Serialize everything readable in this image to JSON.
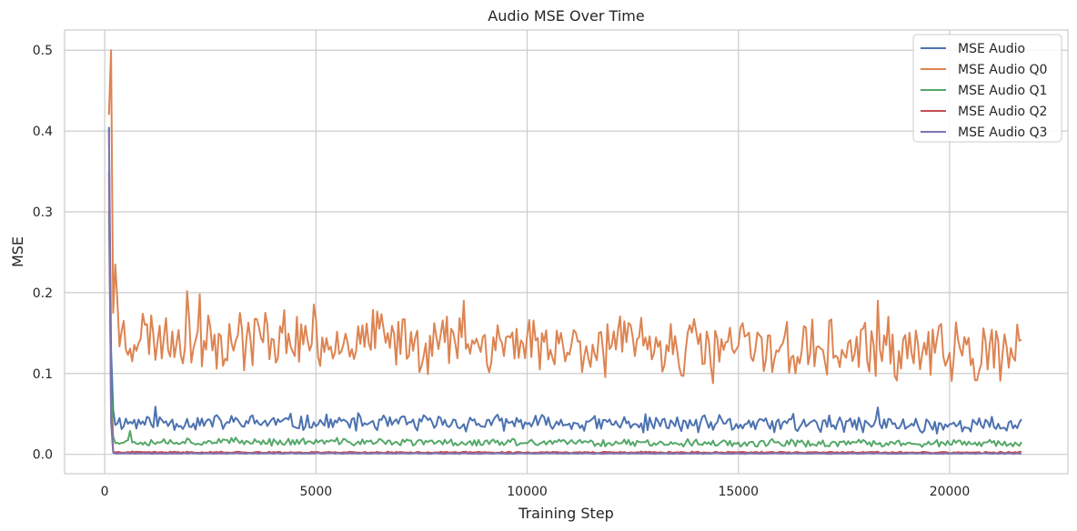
{
  "chart_data": {
    "type": "line",
    "title": "Audio MSE Over Time",
    "xlabel": "Training Step",
    "ylabel": "MSE",
    "xlim": [
      -950,
      22800
    ],
    "ylim": [
      -0.024,
      0.525
    ],
    "xticks": [
      0,
      5000,
      10000,
      15000,
      20000
    ],
    "xtick_labels": [
      "0",
      "5000",
      "10000",
      "15000",
      "20000"
    ],
    "yticks": [
      0.0,
      0.1,
      0.2,
      0.3,
      0.4,
      0.5
    ],
    "ytick_labels": [
      "0.0",
      "0.1",
      "0.2",
      "0.3",
      "0.4",
      "0.5"
    ],
    "grid": true,
    "legend_position": "top-right",
    "series": [
      {
        "name": "MSE Audio",
        "color": "#4c72b0",
        "x_start": 100,
        "x_step": 50,
        "head": [
          0.405,
          0.13,
          0.055
        ],
        "steady_mean": 0.04,
        "steady_amp": 0.009,
        "end_mean": 0.036,
        "spikes": [
          [
            18300,
            0.058
          ],
          [
            1200,
            0.059
          ],
          [
            16300,
            0.05
          ]
        ],
        "seed": 11
      },
      {
        "name": "MSE Audio Q0",
        "color": "#dd8452",
        "x_start": 100,
        "x_step": 50,
        "head": [
          0.42,
          0.5,
          0.175,
          0.235,
          0.19
        ],
        "steady_mean": 0.148,
        "steady_amp": 0.032,
        "end_mean": 0.125,
        "spikes": [
          [
            8500,
            0.19
          ],
          [
            18300,
            0.19
          ],
          [
            1950,
            0.202
          ],
          [
            2250,
            0.198
          ],
          [
            14400,
            0.088
          ],
          [
            21200,
            0.091
          ]
        ],
        "seed": 23
      },
      {
        "name": "MSE Audio Q1",
        "color": "#55a868",
        "x_start": 100,
        "x_step": 50,
        "head": [
          0.3,
          0.08,
          0.022
        ],
        "steady_mean": 0.016,
        "steady_amp": 0.004,
        "end_mean": 0.013,
        "spikes": [
          [
            600,
            0.029
          ]
        ],
        "seed": 37
      },
      {
        "name": "MSE Audio Q2",
        "color": "#c44e52",
        "x_start": 100,
        "x_step": 50,
        "head": [
          0.35,
          0.05,
          0.004
        ],
        "steady_mean": 0.0025,
        "steady_amp": 0.0008,
        "end_mean": 0.0022,
        "spikes": [],
        "seed": 41
      },
      {
        "name": "MSE Audio Q3",
        "color": "#8172b3",
        "x_start": 100,
        "x_step": 50,
        "head": [
          0.4,
          0.04,
          0.002
        ],
        "steady_mean": 0.0012,
        "steady_amp": 0.0005,
        "end_mean": 0.001,
        "spikes": [],
        "seed": 53
      }
    ],
    "x_end": 21700
  }
}
